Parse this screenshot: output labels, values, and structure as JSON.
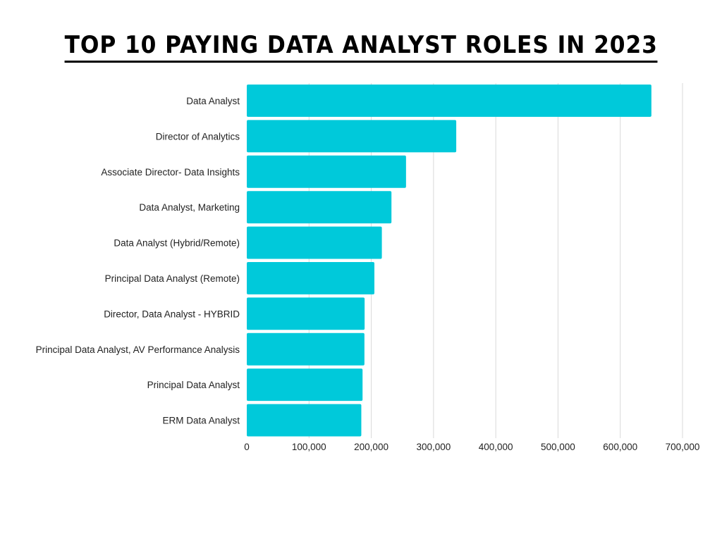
{
  "chart_data": {
    "type": "bar",
    "orientation": "horizontal",
    "title": "TOP 10 PAYING DATA ANALYST ROLES IN 2023",
    "xlabel": "",
    "ylabel": "",
    "categories": [
      "Data Analyst",
      "Director of Analytics",
      "Associate Director- Data Insights",
      "Data Analyst, Marketing",
      "Data Analyst (Hybrid/Remote)",
      "Principal Data Analyst (Remote)",
      "Director, Data Analyst - HYBRID",
      "Principal Data Analyst, AV Performance Analysis",
      "Principal Data Analyst",
      "ERM Data Analyst"
    ],
    "values": [
      650000,
      336500,
      255830,
      232423,
      217000,
      205000,
      189309,
      189000,
      186000,
      184000
    ],
    "xlim": [
      0,
      700000
    ],
    "ticks": [
      0,
      100000,
      200000,
      300000,
      400000,
      500000,
      600000,
      700000
    ],
    "tick_labels": [
      "0",
      "100,000",
      "200,000",
      "300,000",
      "400,000",
      "500,000",
      "600,000",
      "700,000"
    ],
    "grid": true,
    "legend": "none",
    "bar_color": "#00C9DA",
    "grid_color": "#D9D9D9"
  }
}
